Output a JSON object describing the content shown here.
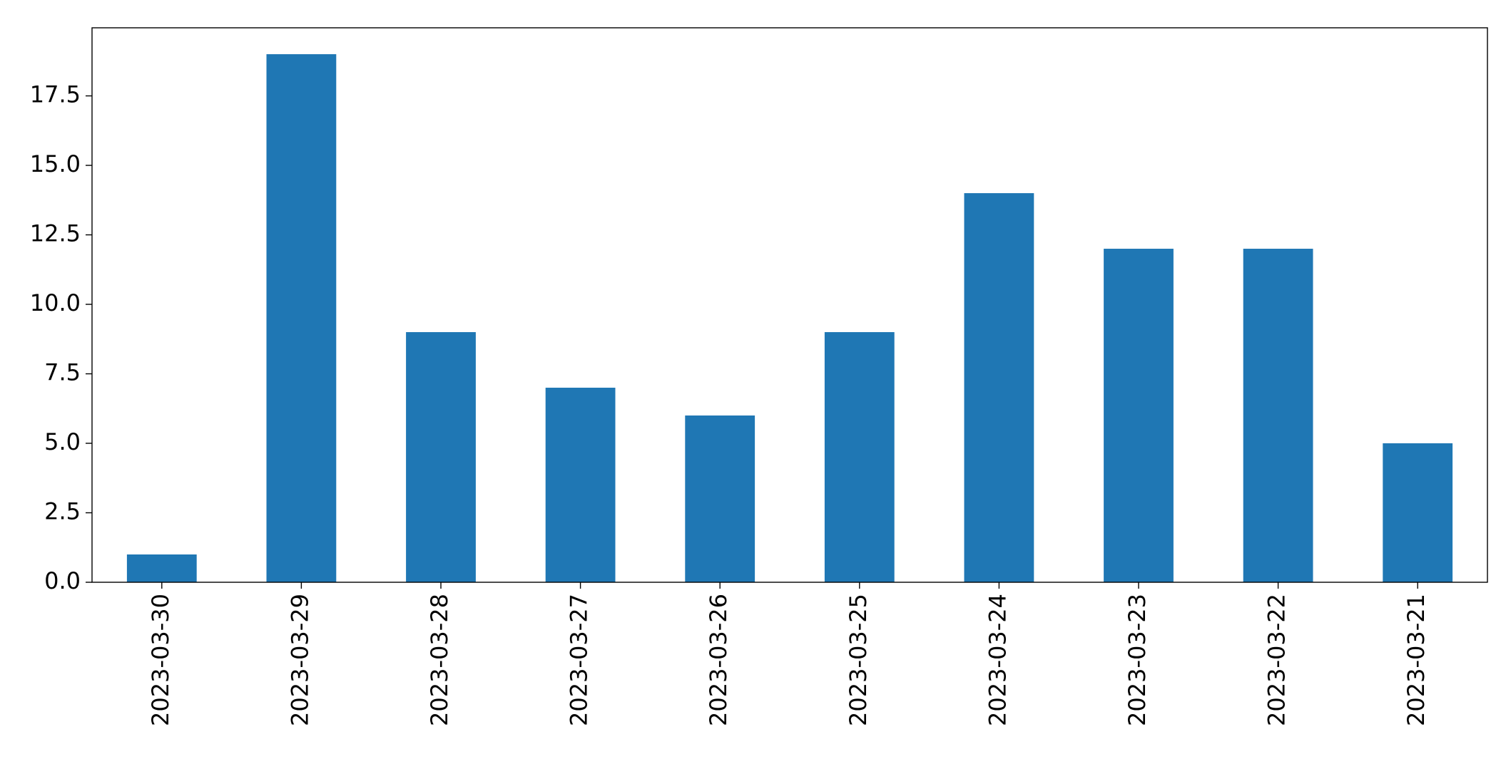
{
  "chart_data": {
    "type": "bar",
    "categories": [
      "2023-03-30",
      "2023-03-29",
      "2023-03-28",
      "2023-03-27",
      "2023-03-26",
      "2023-03-25",
      "2023-03-24",
      "2023-03-23",
      "2023-03-22",
      "2023-03-21"
    ],
    "values": [
      1,
      19,
      9,
      7,
      6,
      9,
      14,
      12,
      12,
      5
    ],
    "color": "#1f77b4",
    "ylim": [
      0,
      19.95
    ],
    "yticks": [
      {
        "value": 0,
        "label": "0.0"
      },
      2.5,
      {
        "value": 5,
        "label": "5.0"
      },
      7.5,
      {
        "value": 10,
        "label": "10.0"
      },
      12.5,
      {
        "value": 15,
        "label": "15.0"
      },
      17.5
    ],
    "grid": false
  }
}
